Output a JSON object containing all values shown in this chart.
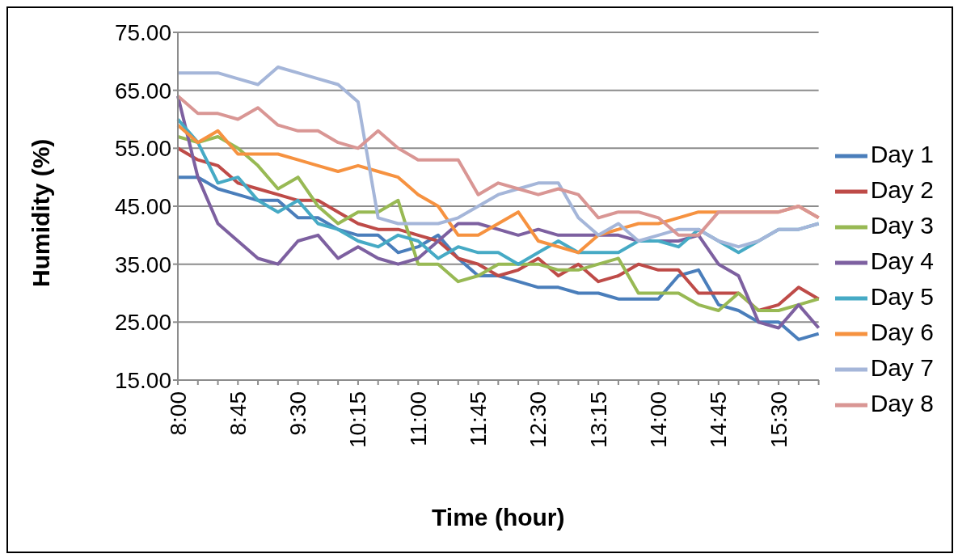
{
  "chart_data": {
    "type": "line",
    "xlabel": "Time (hour)",
    "ylabel": "Humidity  (%)",
    "categories": [
      "8:00",
      null,
      null,
      "8:45",
      null,
      null,
      "9:30",
      null,
      null,
      "10:15",
      null,
      null,
      "11:00",
      null,
      null,
      "11:45",
      null,
      null,
      "12:30",
      null,
      null,
      "13:15",
      null,
      null,
      "14:00",
      null,
      null,
      "14:45",
      null,
      null,
      "15:30",
      null,
      null
    ],
    "series": [
      {
        "name": "Day 1",
        "color": "#4a7ebb",
        "values": [
          50,
          50,
          48,
          47,
          46,
          46,
          43,
          43,
          41,
          40,
          40,
          37,
          38,
          40,
          36,
          33,
          33,
          32,
          31,
          31,
          30,
          30,
          29,
          29,
          29,
          33,
          34,
          28,
          27,
          25,
          25,
          22,
          23
        ]
      },
      {
        "name": "Day 2",
        "color": "#be4b48",
        "values": [
          55,
          53,
          52,
          49,
          48,
          47,
          46,
          46,
          44,
          42,
          41,
          41,
          40,
          39,
          36,
          35,
          33,
          34,
          36,
          33,
          35,
          32,
          33,
          35,
          34,
          34,
          30,
          30,
          30,
          27,
          28,
          31,
          29
        ]
      },
      {
        "name": "Day 3",
        "color": "#98b954",
        "values": [
          57,
          56,
          57,
          55,
          52,
          48,
          50,
          45,
          42,
          44,
          44,
          46,
          35,
          35,
          32,
          33,
          35,
          35,
          35,
          34,
          34,
          35,
          36,
          30,
          30,
          30,
          28,
          27,
          30,
          27,
          27,
          28,
          29
        ]
      },
      {
        "name": "Day 4",
        "color": "#7d60a0",
        "values": [
          64,
          50,
          42,
          39,
          36,
          35,
          39,
          40,
          36,
          38,
          36,
          35,
          36,
          39,
          42,
          42,
          41,
          40,
          41,
          40,
          40,
          40,
          40,
          39,
          39,
          39,
          40,
          35,
          33,
          25,
          24,
          28,
          24
        ]
      },
      {
        "name": "Day 5",
        "color": "#46aac5",
        "values": [
          60,
          56,
          49,
          50,
          46,
          44,
          46,
          42,
          41,
          39,
          38,
          40,
          39,
          36,
          38,
          37,
          37,
          35,
          37,
          39,
          37,
          37,
          37,
          39,
          39,
          38,
          41,
          39,
          37,
          39,
          41,
          41,
          42
        ]
      },
      {
        "name": "Day 6",
        "color": "#f69240",
        "values": [
          59,
          56,
          58,
          54,
          54,
          54,
          53,
          52,
          51,
          52,
          51,
          50,
          47,
          45,
          40,
          40,
          42,
          44,
          39,
          38,
          37,
          40,
          41,
          42,
          42,
          43,
          44,
          44,
          44,
          44,
          44,
          45,
          43
        ]
      },
      {
        "name": "Day 7",
        "color": "#a5b6d9",
        "values": [
          68,
          68,
          68,
          67,
          66,
          69,
          68,
          67,
          66,
          63,
          43,
          42,
          42,
          42,
          43,
          45,
          47,
          48,
          49,
          49,
          43,
          40,
          42,
          39,
          40,
          41,
          41,
          39,
          38,
          39,
          41,
          41,
          42
        ]
      },
      {
        "name": "Day 8",
        "color": "#d99694",
        "values": [
          64,
          61,
          61,
          60,
          62,
          59,
          58,
          58,
          56,
          55,
          58,
          55,
          53,
          53,
          53,
          47,
          49,
          48,
          47,
          48,
          47,
          43,
          44,
          44,
          43,
          40,
          40,
          44,
          44,
          44,
          44,
          45,
          43
        ]
      }
    ],
    "ylim": [
      15,
      75
    ],
    "yticks": [
      {
        "value": 15,
        "label": "15.00"
      },
      {
        "value": 25,
        "label": "25.00"
      },
      {
        "value": 35,
        "label": "35.00"
      },
      {
        "value": 45,
        "label": "45.00"
      },
      {
        "value": 55,
        "label": "55.00"
      },
      {
        "value": 65,
        "label": "65.00"
      },
      {
        "value": 75,
        "label": "75.00"
      }
    ],
    "grid": "y",
    "legend": "right",
    "marker": "none",
    "line_style": "solid"
  }
}
